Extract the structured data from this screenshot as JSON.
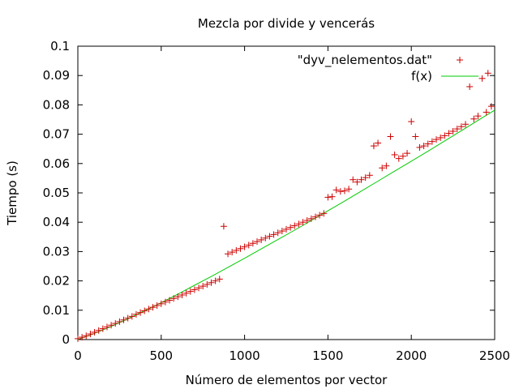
{
  "chart_data": {
    "type": "scatter",
    "title": "Mezcla por divide y vencerás",
    "xlabel": "Número de elementos por vector",
    "ylabel": "Tiempo (s)",
    "xlim": [
      0,
      2500
    ],
    "ylim": [
      0,
      0.1
    ],
    "x_ticks": [
      0,
      500,
      1000,
      1500,
      2000,
      2500
    ],
    "y_ticks": [
      0,
      0.01,
      0.02,
      0.03,
      0.04,
      0.05,
      0.06,
      0.07,
      0.08,
      0.09,
      0.1
    ],
    "x_tick_labels": [
      "0",
      "500",
      "1000",
      "1500",
      "2000",
      "2500"
    ],
    "y_tick_labels": [
      "0",
      "0.01",
      "0.02",
      "0.03",
      "0.04",
      "0.05",
      "0.06",
      "0.07",
      "0.08",
      "0.09",
      "0.1"
    ],
    "grid": false,
    "legend_position": "top-right",
    "series": [
      {
        "name": "\"dyv_nelementos.dat\"",
        "kind": "points",
        "marker": "+",
        "color": "#cc0000",
        "points": [
          [
            0,
            0.0003
          ],
          [
            25,
            0.0008
          ],
          [
            50,
            0.0013
          ],
          [
            75,
            0.0019
          ],
          [
            100,
            0.0025
          ],
          [
            125,
            0.0031
          ],
          [
            150,
            0.0037
          ],
          [
            175,
            0.0043
          ],
          [
            200,
            0.0049
          ],
          [
            225,
            0.0055
          ],
          [
            250,
            0.0061
          ],
          [
            275,
            0.0067
          ],
          [
            300,
            0.0073
          ],
          [
            325,
            0.0079
          ],
          [
            350,
            0.0086
          ],
          [
            375,
            0.0092
          ],
          [
            400,
            0.0098
          ],
          [
            425,
            0.0104
          ],
          [
            450,
            0.011
          ],
          [
            475,
            0.0116
          ],
          [
            500,
            0.0122
          ],
          [
            525,
            0.0128
          ],
          [
            550,
            0.0134
          ],
          [
            575,
            0.014
          ],
          [
            600,
            0.0146
          ],
          [
            625,
            0.0152
          ],
          [
            650,
            0.0158
          ],
          [
            675,
            0.0164
          ],
          [
            700,
            0.017
          ],
          [
            725,
            0.0176
          ],
          [
            750,
            0.0182
          ],
          [
            775,
            0.0188
          ],
          [
            800,
            0.0194
          ],
          [
            825,
            0.02
          ],
          [
            850,
            0.0206
          ],
          [
            875,
            0.0386
          ],
          [
            900,
            0.0292
          ],
          [
            925,
            0.0298
          ],
          [
            950,
            0.0304
          ],
          [
            975,
            0.031
          ],
          [
            1000,
            0.0316
          ],
          [
            1025,
            0.0322
          ],
          [
            1050,
            0.0328
          ],
          [
            1075,
            0.0334
          ],
          [
            1100,
            0.034
          ],
          [
            1125,
            0.0346
          ],
          [
            1150,
            0.0352
          ],
          [
            1175,
            0.0358
          ],
          [
            1200,
            0.0364
          ],
          [
            1225,
            0.037
          ],
          [
            1250,
            0.0376
          ],
          [
            1275,
            0.0382
          ],
          [
            1300,
            0.0388
          ],
          [
            1325,
            0.0394
          ],
          [
            1350,
            0.04
          ],
          [
            1375,
            0.0406
          ],
          [
            1400,
            0.0412
          ],
          [
            1425,
            0.0418
          ],
          [
            1450,
            0.0424
          ],
          [
            1475,
            0.043
          ],
          [
            1500,
            0.0485
          ],
          [
            1525,
            0.0487
          ],
          [
            1550,
            0.051
          ],
          [
            1575,
            0.0505
          ],
          [
            1600,
            0.0507
          ],
          [
            1625,
            0.0513
          ],
          [
            1650,
            0.0545
          ],
          [
            1675,
            0.0537
          ],
          [
            1700,
            0.0545
          ],
          [
            1725,
            0.0552
          ],
          [
            1750,
            0.056
          ],
          [
            1775,
            0.066
          ],
          [
            1800,
            0.067
          ],
          [
            1825,
            0.0585
          ],
          [
            1850,
            0.0592
          ],
          [
            1875,
            0.0692
          ],
          [
            1900,
            0.063
          ],
          [
            1925,
            0.0617
          ],
          [
            1950,
            0.0625
          ],
          [
            1975,
            0.0635
          ],
          [
            2000,
            0.0743
          ],
          [
            2025,
            0.0692
          ],
          [
            2050,
            0.0655
          ],
          [
            2075,
            0.066
          ],
          [
            2100,
            0.0667
          ],
          [
            2125,
            0.0675
          ],
          [
            2150,
            0.0682
          ],
          [
            2175,
            0.0688
          ],
          [
            2200,
            0.0695
          ],
          [
            2225,
            0.0703
          ],
          [
            2250,
            0.071
          ],
          [
            2275,
            0.0718
          ],
          [
            2300,
            0.0726
          ],
          [
            2325,
            0.0734
          ],
          [
            2350,
            0.0862
          ],
          [
            2375,
            0.0752
          ],
          [
            2400,
            0.0762
          ],
          [
            2425,
            0.089
          ],
          [
            2450,
            0.0775
          ],
          [
            2460,
            0.0908
          ],
          [
            2480,
            0.0795
          ]
        ]
      },
      {
        "name": "f(x)",
        "kind": "line",
        "color": "#00cc00",
        "points": [
          [
            0,
            0.0
          ],
          [
            100,
            0.0021
          ],
          [
            200,
            0.0045
          ],
          [
            300,
            0.0071
          ],
          [
            400,
            0.0098
          ],
          [
            500,
            0.0126
          ],
          [
            600,
            0.0155
          ],
          [
            700,
            0.0185
          ],
          [
            800,
            0.0215
          ],
          [
            900,
            0.0246
          ],
          [
            1000,
            0.0277
          ],
          [
            1100,
            0.0309
          ],
          [
            1200,
            0.0341
          ],
          [
            1300,
            0.0373
          ],
          [
            1400,
            0.0406
          ],
          [
            1500,
            0.0439
          ],
          [
            1600,
            0.0472
          ],
          [
            1700,
            0.0506
          ],
          [
            1800,
            0.054
          ],
          [
            1900,
            0.0574
          ],
          [
            2000,
            0.0608
          ],
          [
            2100,
            0.0642
          ],
          [
            2200,
            0.0677
          ],
          [
            2300,
            0.0712
          ],
          [
            2400,
            0.0747
          ],
          [
            2500,
            0.0782
          ]
        ]
      }
    ]
  }
}
